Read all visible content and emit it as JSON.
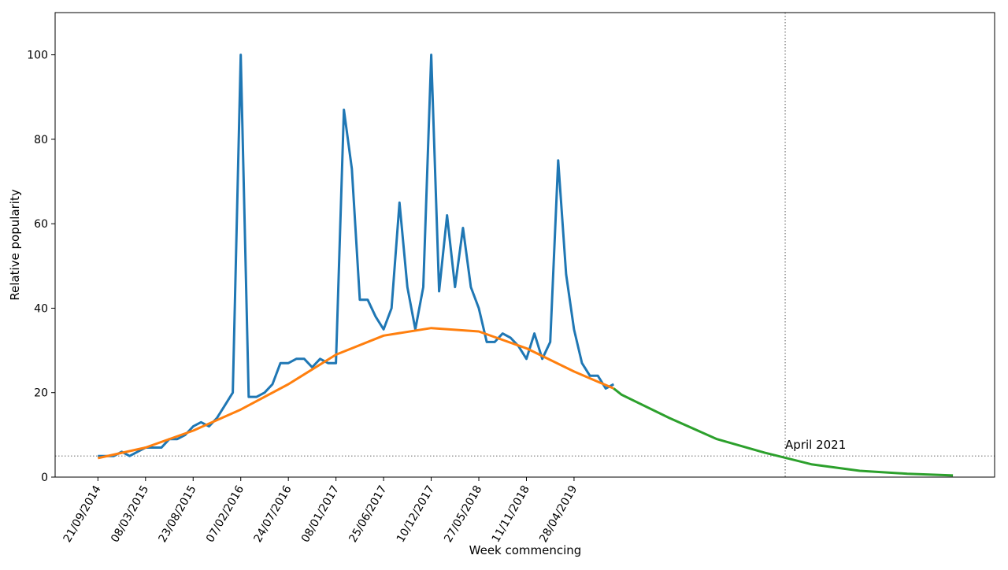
{
  "chart_data": {
    "type": "line",
    "xlabel": "Week commencing",
    "ylabel": "Relative popularity",
    "xlim": [
      "23/04/2014",
      "21/05/2023"
    ],
    "ylim": [
      0,
      110
    ],
    "yticks": [
      0,
      20,
      40,
      60,
      80,
      100
    ],
    "xticks": [
      "21/09/2014",
      "08/03/2015",
      "23/08/2015",
      "07/02/2016",
      "24/07/2016",
      "08/01/2017",
      "25/06/2017",
      "10/12/2017",
      "27/05/2018",
      "11/11/2018",
      "28/04/2019"
    ],
    "grid": false,
    "series": [
      {
        "color": "#1f77b4",
        "x": [
          "21/09/2014",
          "19/10/2014",
          "16/11/2014",
          "14/12/2014",
          "11/01/2015",
          "08/02/2015",
          "08/03/2015",
          "05/04/2015",
          "03/05/2015",
          "31/05/2015",
          "28/06/2015",
          "26/07/2015",
          "23/08/2015",
          "20/09/2015",
          "18/10/2015",
          "15/11/2015",
          "13/12/2015",
          "10/01/2016",
          "07/02/2016",
          "06/03/2016",
          "03/04/2016",
          "01/05/2016",
          "29/05/2016",
          "26/06/2016",
          "24/07/2016",
          "21/08/2016",
          "18/09/2016",
          "16/10/2016",
          "13/11/2016",
          "11/12/2016",
          "08/01/2017",
          "05/02/2017",
          "05/03/2017",
          "02/04/2017",
          "30/04/2017",
          "28/05/2017",
          "25/06/2017",
          "23/07/2017",
          "20/08/2017",
          "17/09/2017",
          "15/10/2017",
          "12/11/2017",
          "10/12/2017",
          "07/01/2018",
          "04/02/2018",
          "04/03/2018",
          "01/04/2018",
          "29/04/2018",
          "27/05/2018",
          "24/06/2018",
          "22/07/2018",
          "19/08/2018",
          "16/09/2018",
          "14/10/2018",
          "11/11/2018",
          "09/12/2018",
          "06/01/2019",
          "03/02/2019",
          "03/03/2019",
          "31/03/2019",
          "28/04/2019",
          "26/05/2019",
          "23/06/2019",
          "21/07/2019",
          "18/08/2019",
          "15/09/2019"
        ],
        "values": [
          5,
          5,
          5,
          6,
          5,
          6,
          7,
          7,
          7,
          9,
          9,
          10,
          12,
          13,
          12,
          14,
          17,
          20,
          100,
          19,
          19,
          20,
          22,
          27,
          27,
          28,
          28,
          26,
          28,
          27,
          27,
          87,
          73,
          42,
          42,
          38,
          35,
          40,
          65,
          45,
          35,
          45,
          100,
          44,
          62,
          45,
          59,
          45,
          40,
          32,
          32,
          34,
          33,
          31,
          28,
          34,
          28,
          32,
          75,
          48,
          35,
          27,
          24,
          24,
          21,
          22
        ]
      },
      {
        "color": "#ff7f0e",
        "x": [
          "21/09/2014",
          "08/03/2015",
          "23/08/2015",
          "07/02/2016",
          "24/07/2016",
          "08/01/2017",
          "25/06/2017",
          "10/12/2017",
          "27/05/2018",
          "11/11/2018",
          "28/04/2019",
          "15/09/2019"
        ],
        "values": [
          4.5,
          7,
          11,
          16,
          22,
          29,
          33.5,
          35.3,
          34.5,
          30.5,
          25,
          21
        ]
      },
      {
        "color": "#2ca02c",
        "x": [
          "15/09/2019",
          "13/10/2019",
          "29/03/2020",
          "13/09/2020",
          "28/02/2021",
          "15/08/2021",
          "30/01/2022",
          "17/07/2022",
          "25/12/2022"
        ],
        "values": [
          21,
          19.5,
          14,
          9,
          5.8,
          3,
          1.5,
          0.8,
          0.4
        ]
      }
    ],
    "hline": 5,
    "annotation": {
      "text": "April 2021",
      "x": "12/05/2021"
    }
  }
}
